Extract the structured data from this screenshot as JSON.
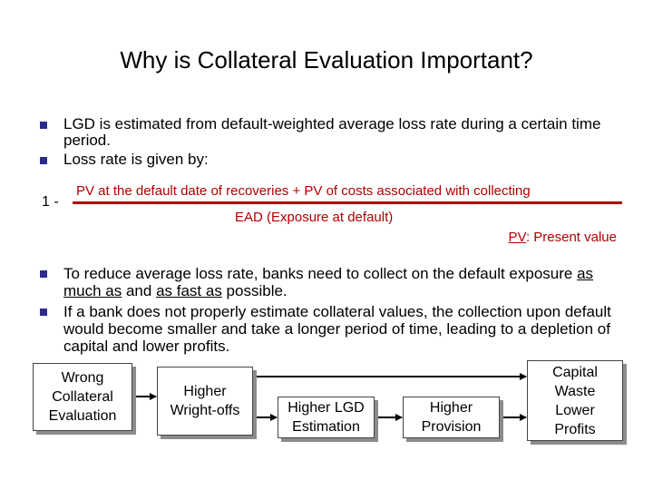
{
  "title": "Why is Collateral Evaluation Important?",
  "bullets_top": [
    {
      "text": "LGD is estimated from default-weighted average loss rate during a certain time period."
    },
    {
      "text": "Loss rate is given by:"
    }
  ],
  "formula": {
    "prefix": "1 -",
    "numerator": "PV at the default date of recoveries + PV of costs associated with collecting",
    "denominator": "EAD (Exposure at default)",
    "pv_note_abbr": "PV",
    "pv_note_rest": ": Present value"
  },
  "bullet_2": {
    "part1": "To reduce average loss rate, banks need to collect on the default exposure ",
    "emph1": "as much as",
    "part2": " and ",
    "emph2": "as fast as",
    "part3": " possible."
  },
  "bullet_3": {
    "text": "If a bank does not properly estimate collateral values, the collection upon default would become smaller and take a longer period of time, leading to a depletion of capital and lower profits."
  },
  "flow": {
    "wrong": "Wrong\nCollateral\nEvaluation",
    "writeoffs": "Higher\nWright-offs",
    "lgd": "Higher LGD\nEstimation",
    "provision": "Higher\nProvision",
    "capital": "Capital\nWaste\nLower\nProfits"
  },
  "colors": {
    "formula": "#b00000",
    "bullet": "#2b2b8c"
  }
}
